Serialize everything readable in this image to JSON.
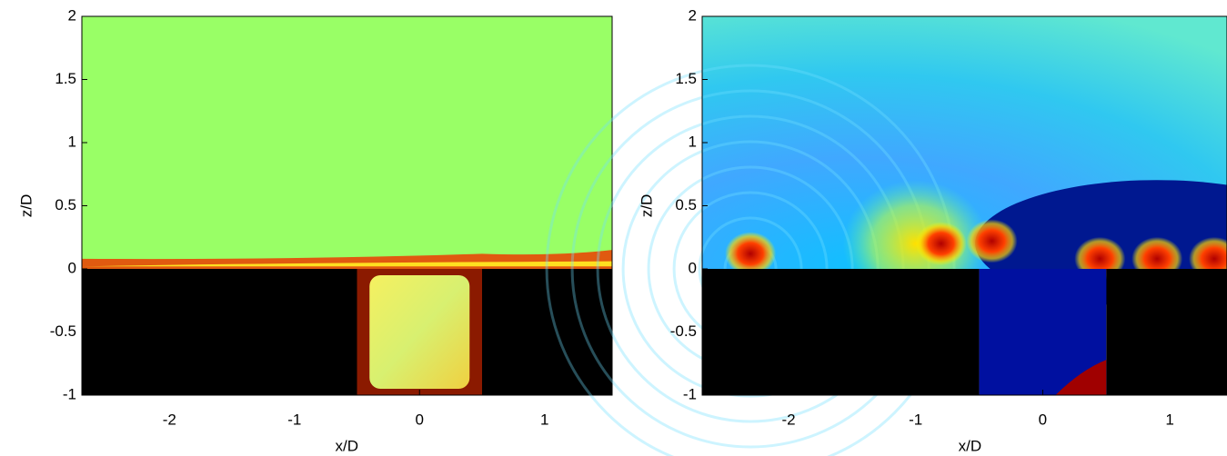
{
  "chart_data": [
    {
      "type": "contour",
      "xlabel": "x/D",
      "ylabel": "z/D",
      "xlim": [
        -2.7,
        1.54
      ],
      "ylim": [
        -1,
        2
      ],
      "xticks": [
        -2,
        -1,
        0,
        1
      ],
      "yticks": [
        -1,
        -0.5,
        0,
        0.5,
        1,
        1.5,
        2
      ]
    },
    {
      "type": "contour",
      "xlabel": "x/D",
      "ylabel": "z/D",
      "xlim": [
        -2.68,
        1.45
      ],
      "ylim": [
        -1,
        2
      ],
      "xticks": [
        -2,
        -1,
        0,
        1
      ],
      "yticks": [
        -1,
        -0.5,
        0,
        0.5,
        1,
        1.5,
        2
      ]
    }
  ]
}
